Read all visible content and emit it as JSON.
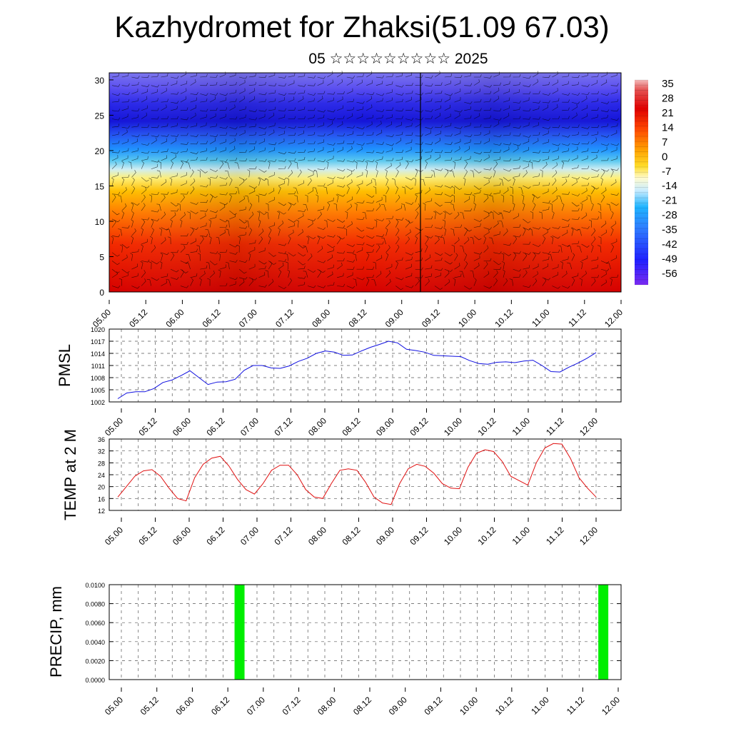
{
  "title": "Kazhydromet for Zhaksi(51.09 67.03)",
  "subtitle": "05 ☆☆☆☆☆☆☆☆☆ 2025",
  "x_labels": [
    "05.00",
    "05.12",
    "06.00",
    "06.12",
    "07.00",
    "07.12",
    "08.00",
    "08.12",
    "09.00",
    "09.12",
    "10.00",
    "10.12",
    "11.00",
    "11.12",
    "12.00"
  ],
  "chart_data": [
    {
      "type": "heatmap",
      "title": "",
      "ylim": [
        0,
        31
      ],
      "y_ticks": [
        "0",
        "5",
        "10",
        "15",
        "20",
        "25",
        "30"
      ],
      "colorbar_ticks": [
        "35",
        "28",
        "21",
        "14",
        "7",
        "0",
        "-7",
        "-14",
        "-21",
        "-28",
        "-35",
        "-42",
        "-49",
        "-56"
      ],
      "description_levels_km": [
        0,
        31
      ],
      "colors": {
        "warm": "#e8000b",
        "neutral": "#ffff80",
        "cold": "#1414ff"
      }
    },
    {
      "type": "line",
      "ylabel": "PMSL",
      "ylim": [
        1002,
        1020
      ],
      "y_ticks": [
        "1020",
        "1017",
        "1014",
        "1011",
        "1008",
        "1005",
        "1002"
      ],
      "color": "#1010e0",
      "values": [
        1002.8,
        1004.2,
        1004.5,
        1004.5,
        1005.3,
        1006.8,
        1007.4,
        1008.5,
        1009.7,
        1008.0,
        1006.3,
        1006.9,
        1007.0,
        1007.6,
        1009.8,
        1011.0,
        1011.0,
        1010.4,
        1010.3,
        1010.9,
        1012.0,
        1012.8,
        1014.0,
        1014.6,
        1014.3,
        1013.5,
        1013.6,
        1014.6,
        1015.5,
        1016.2,
        1017.0,
        1016.6,
        1015.0,
        1014.7,
        1014.3,
        1013.5,
        1013.4,
        1013.3,
        1013.2,
        1012.2,
        1011.5,
        1011.3,
        1011.8,
        1011.9,
        1011.7,
        1012.1,
        1012.3,
        1011.0,
        1009.5,
        1009.4,
        1010.6,
        1011.6,
        1012.8,
        1014.2
      ]
    },
    {
      "type": "line",
      "ylabel": "TEMP at 2 M",
      "ylim": [
        12,
        36
      ],
      "y_ticks": [
        "36",
        "32",
        "28",
        "24",
        "20",
        "16",
        "12"
      ],
      "color": "#e01010",
      "values": [
        16.5,
        20.0,
        23.5,
        25.3,
        25.7,
        23.5,
        19.5,
        16.0,
        15.2,
        23.0,
        27.5,
        29.6,
        30.2,
        27.0,
        22.5,
        19.0,
        17.5,
        21.0,
        25.5,
        27.2,
        27.2,
        24.0,
        19.0,
        16.5,
        16.0,
        21.0,
        25.5,
        26.0,
        25.5,
        21.5,
        16.5,
        14.5,
        14.0,
        21.0,
        26.0,
        27.5,
        26.8,
        24.5,
        21.0,
        19.5,
        19.3,
        26.5,
        31.2,
        32.4,
        31.8,
        28.5,
        23.5,
        22.0,
        20.5,
        28.0,
        33.0,
        34.5,
        34.3,
        29.5,
        23.0,
        19.5,
        16.5
      ]
    },
    {
      "type": "bar",
      "ylabel": "PRECIP, mm",
      "ylim": [
        0,
        0.01
      ],
      "y_ticks": [
        "0.0100",
        "0.0080",
        "0.0060",
        "0.0040",
        "0.0020",
        "0.0000"
      ],
      "color": "#00ee00",
      "bars": [
        {
          "x": 3.33,
          "value": 0.01
        },
        {
          "x": 13.58,
          "value": 0.01
        }
      ]
    }
  ]
}
